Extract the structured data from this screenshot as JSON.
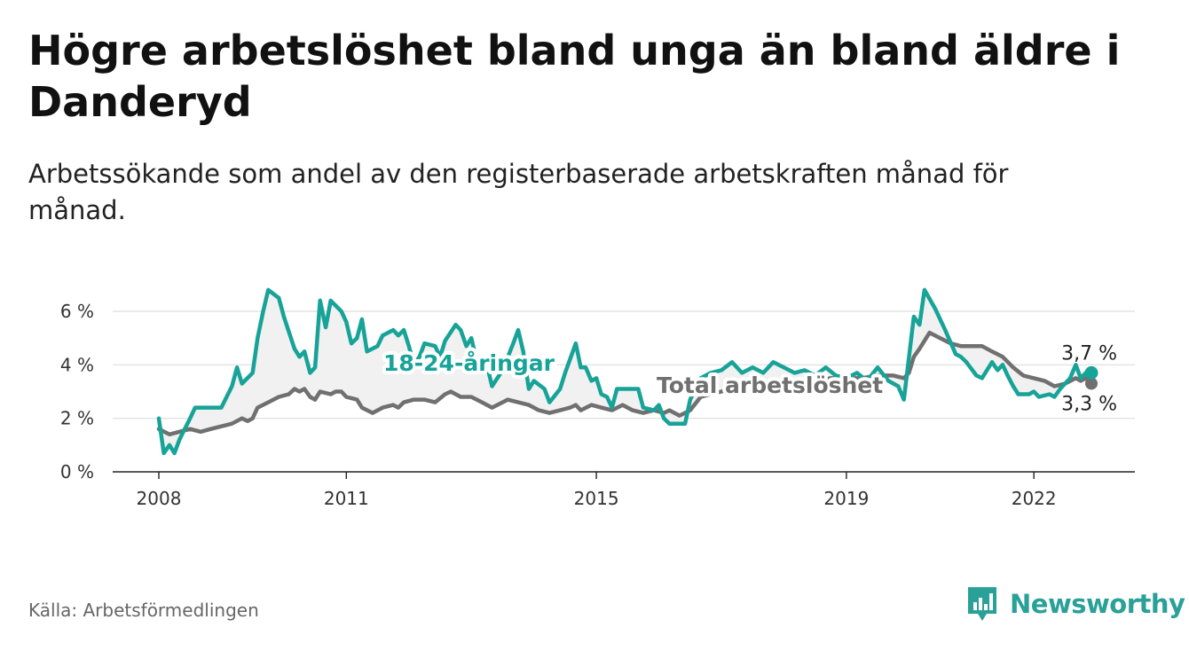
{
  "header": {
    "title": "Högre arbetslöshet bland unga än bland äldre i Danderyd",
    "subtitle": "Arbetssökande som andel av den registerbaserade arbetskraften månad för månad."
  },
  "footer": {
    "source": "Källa: Arbetsförmedlingen",
    "brand": "Newsworthy"
  },
  "colors": {
    "youth": "#17a398",
    "total": "#707070",
    "grid": "#dddddd",
    "band": "#f1f1f1"
  },
  "chart_data": {
    "type": "line",
    "xlabel": "",
    "ylabel": "",
    "x_range": [
      2008.0,
      2022.92
    ],
    "ylim": [
      0,
      6
    ],
    "y_ticks": [
      {
        "value": 0,
        "label": "0 %"
      },
      {
        "value": 2,
        "label": "2 %"
      },
      {
        "value": 4,
        "label": "4 %"
      },
      {
        "value": 6,
        "label": "6 %"
      }
    ],
    "x_ticks": [
      {
        "value": 2008,
        "label": "2008"
      },
      {
        "value": 2011,
        "label": "2011"
      },
      {
        "value": 2015,
        "label": "2015"
      },
      {
        "value": 2019,
        "label": "2019"
      },
      {
        "value": 2022,
        "label": "2022"
      }
    ],
    "series": [
      {
        "name": "18-24-åringar",
        "label": "18-24-åringar",
        "end_label": "3,7 %",
        "color": "#17a398",
        "points": [
          [
            2008.0,
            2.0
          ],
          [
            2008.08,
            0.7
          ],
          [
            2008.17,
            1.0
          ],
          [
            2008.25,
            0.7
          ],
          [
            2008.33,
            1.2
          ],
          [
            2008.5,
            2.0
          ],
          [
            2008.58,
            2.4
          ],
          [
            2008.75,
            2.4
          ],
          [
            2008.92,
            2.4
          ],
          [
            2009.0,
            2.4
          ],
          [
            2009.17,
            3.2
          ],
          [
            2009.25,
            3.9
          ],
          [
            2009.33,
            3.3
          ],
          [
            2009.5,
            3.7
          ],
          [
            2009.58,
            5.0
          ],
          [
            2009.67,
            6.0
          ],
          [
            2009.75,
            6.8
          ],
          [
            2009.92,
            6.5
          ],
          [
            2010.0,
            5.8
          ],
          [
            2010.17,
            4.6
          ],
          [
            2010.25,
            4.3
          ],
          [
            2010.33,
            4.5
          ],
          [
            2010.42,
            3.7
          ],
          [
            2010.5,
            3.9
          ],
          [
            2010.58,
            6.4
          ],
          [
            2010.67,
            5.4
          ],
          [
            2010.75,
            6.4
          ],
          [
            2010.92,
            6.0
          ],
          [
            2011.0,
            5.6
          ],
          [
            2011.08,
            4.8
          ],
          [
            2011.17,
            5.0
          ],
          [
            2011.25,
            5.7
          ],
          [
            2011.33,
            4.5
          ],
          [
            2011.5,
            4.7
          ],
          [
            2011.58,
            5.1
          ],
          [
            2011.75,
            5.3
          ],
          [
            2011.83,
            5.1
          ],
          [
            2011.92,
            5.3
          ],
          [
            2012.0,
            4.7
          ],
          [
            2012.08,
            4.0
          ],
          [
            2012.17,
            4.3
          ],
          [
            2012.25,
            4.8
          ],
          [
            2012.42,
            4.7
          ],
          [
            2012.5,
            4.3
          ],
          [
            2012.58,
            4.9
          ],
          [
            2012.75,
            5.5
          ],
          [
            2012.83,
            5.3
          ],
          [
            2012.92,
            4.7
          ],
          [
            2013.0,
            5.0
          ],
          [
            2013.08,
            4.2
          ],
          [
            2013.25,
            4.0
          ],
          [
            2013.33,
            3.2
          ],
          [
            2013.5,
            3.8
          ],
          [
            2013.67,
            4.8
          ],
          [
            2013.75,
            5.3
          ],
          [
            2013.83,
            4.5
          ],
          [
            2013.92,
            3.1
          ],
          [
            2014.0,
            3.4
          ],
          [
            2014.17,
            3.1
          ],
          [
            2014.25,
            2.6
          ],
          [
            2014.42,
            3.1
          ],
          [
            2014.5,
            3.7
          ],
          [
            2014.67,
            4.8
          ],
          [
            2014.75,
            3.9
          ],
          [
            2014.83,
            3.9
          ],
          [
            2014.92,
            3.4
          ],
          [
            2015.0,
            3.5
          ],
          [
            2015.08,
            2.9
          ],
          [
            2015.17,
            2.8
          ],
          [
            2015.25,
            2.4
          ],
          [
            2015.33,
            3.1
          ],
          [
            2015.5,
            3.1
          ],
          [
            2015.67,
            3.1
          ],
          [
            2015.75,
            2.4
          ],
          [
            2015.92,
            2.3
          ],
          [
            2016.0,
            2.5
          ],
          [
            2016.08,
            2.0
          ],
          [
            2016.17,
            1.8
          ],
          [
            2016.33,
            1.8
          ],
          [
            2016.42,
            1.8
          ],
          [
            2016.5,
            2.7
          ],
          [
            2016.67,
            3.5
          ],
          [
            2016.83,
            3.7
          ],
          [
            2017.0,
            3.8
          ],
          [
            2017.17,
            4.1
          ],
          [
            2017.33,
            3.7
          ],
          [
            2017.5,
            3.9
          ],
          [
            2017.67,
            3.7
          ],
          [
            2017.83,
            4.1
          ],
          [
            2018.0,
            3.9
          ],
          [
            2018.17,
            3.7
          ],
          [
            2018.33,
            3.8
          ],
          [
            2018.5,
            3.6
          ],
          [
            2018.67,
            3.9
          ],
          [
            2018.83,
            3.6
          ],
          [
            2019.0,
            3.5
          ],
          [
            2019.17,
            3.7
          ],
          [
            2019.33,
            3.4
          ],
          [
            2019.5,
            3.9
          ],
          [
            2019.67,
            3.4
          ],
          [
            2019.83,
            3.2
          ],
          [
            2019.92,
            2.7
          ],
          [
            2020.08,
            5.8
          ],
          [
            2020.17,
            5.5
          ],
          [
            2020.25,
            6.8
          ],
          [
            2020.42,
            6.1
          ],
          [
            2020.58,
            5.3
          ],
          [
            2020.75,
            4.4
          ],
          [
            2020.83,
            4.3
          ],
          [
            2020.92,
            4.1
          ],
          [
            2021.08,
            3.6
          ],
          [
            2021.17,
            3.5
          ],
          [
            2021.33,
            4.1
          ],
          [
            2021.42,
            3.8
          ],
          [
            2021.5,
            4.0
          ],
          [
            2021.58,
            3.6
          ],
          [
            2021.67,
            3.2
          ],
          [
            2021.75,
            2.9
          ],
          [
            2021.92,
            2.9
          ],
          [
            2022.0,
            3.0
          ],
          [
            2022.08,
            2.8
          ],
          [
            2022.25,
            2.9
          ],
          [
            2022.33,
            2.8
          ],
          [
            2022.42,
            3.1
          ],
          [
            2022.58,
            3.5
          ],
          [
            2022.67,
            4.0
          ],
          [
            2022.75,
            3.5
          ],
          [
            2022.83,
            3.7
          ],
          [
            2022.92,
            3.7
          ]
        ]
      },
      {
        "name": "Total arbetslöshet",
        "label": "Total arbetslöshet",
        "end_label": "3,3 %",
        "color": "#707070",
        "points": [
          [
            2008.0,
            1.6
          ],
          [
            2008.17,
            1.4
          ],
          [
            2008.33,
            1.5
          ],
          [
            2008.5,
            1.6
          ],
          [
            2008.67,
            1.5
          ],
          [
            2008.83,
            1.6
          ],
          [
            2009.0,
            1.7
          ],
          [
            2009.17,
            1.8
          ],
          [
            2009.33,
            2.0
          ],
          [
            2009.42,
            1.9
          ],
          [
            2009.5,
            2.0
          ],
          [
            2009.58,
            2.4
          ],
          [
            2009.75,
            2.6
          ],
          [
            2009.92,
            2.8
          ],
          [
            2010.08,
            2.9
          ],
          [
            2010.17,
            3.1
          ],
          [
            2010.25,
            3.0
          ],
          [
            2010.33,
            3.1
          ],
          [
            2010.42,
            2.8
          ],
          [
            2010.5,
            2.7
          ],
          [
            2010.58,
            3.0
          ],
          [
            2010.75,
            2.9
          ],
          [
            2010.83,
            3.0
          ],
          [
            2010.92,
            3.0
          ],
          [
            2011.0,
            2.8
          ],
          [
            2011.17,
            2.7
          ],
          [
            2011.25,
            2.4
          ],
          [
            2011.42,
            2.2
          ],
          [
            2011.58,
            2.4
          ],
          [
            2011.75,
            2.5
          ],
          [
            2011.83,
            2.4
          ],
          [
            2011.92,
            2.6
          ],
          [
            2012.08,
            2.7
          ],
          [
            2012.25,
            2.7
          ],
          [
            2012.42,
            2.6
          ],
          [
            2012.58,
            2.9
          ],
          [
            2012.67,
            3.0
          ],
          [
            2012.83,
            2.8
          ],
          [
            2013.0,
            2.8
          ],
          [
            2013.17,
            2.6
          ],
          [
            2013.33,
            2.4
          ],
          [
            2013.5,
            2.6
          ],
          [
            2013.58,
            2.7
          ],
          [
            2013.75,
            2.6
          ],
          [
            2013.92,
            2.5
          ],
          [
            2014.08,
            2.3
          ],
          [
            2014.25,
            2.2
          ],
          [
            2014.42,
            2.3
          ],
          [
            2014.58,
            2.4
          ],
          [
            2014.67,
            2.5
          ],
          [
            2014.75,
            2.3
          ],
          [
            2014.92,
            2.5
          ],
          [
            2015.08,
            2.4
          ],
          [
            2015.25,
            2.3
          ],
          [
            2015.42,
            2.5
          ],
          [
            2015.58,
            2.3
          ],
          [
            2015.75,
            2.2
          ],
          [
            2015.92,
            2.3
          ],
          [
            2016.08,
            2.2
          ],
          [
            2016.17,
            2.3
          ],
          [
            2016.33,
            2.1
          ],
          [
            2016.5,
            2.3
          ],
          [
            2016.67,
            2.8
          ],
          [
            2016.83,
            2.9
          ],
          [
            2017.0,
            3.0
          ],
          [
            2017.25,
            3.2
          ],
          [
            2017.5,
            3.3
          ],
          [
            2017.75,
            3.3
          ],
          [
            2018.0,
            3.4
          ],
          [
            2018.25,
            3.4
          ],
          [
            2018.5,
            3.4
          ],
          [
            2018.75,
            3.5
          ],
          [
            2019.0,
            3.5
          ],
          [
            2019.25,
            3.5
          ],
          [
            2019.5,
            3.6
          ],
          [
            2019.75,
            3.6
          ],
          [
            2019.92,
            3.5
          ],
          [
            2020.0,
            3.7
          ],
          [
            2020.08,
            4.3
          ],
          [
            2020.17,
            4.6
          ],
          [
            2020.33,
            5.2
          ],
          [
            2020.5,
            5.0
          ],
          [
            2020.67,
            4.8
          ],
          [
            2020.83,
            4.7
          ],
          [
            2021.0,
            4.7
          ],
          [
            2021.17,
            4.7
          ],
          [
            2021.33,
            4.5
          ],
          [
            2021.5,
            4.3
          ],
          [
            2021.67,
            3.9
          ],
          [
            2021.83,
            3.6
          ],
          [
            2022.0,
            3.5
          ],
          [
            2022.17,
            3.4
          ],
          [
            2022.33,
            3.2
          ],
          [
            2022.5,
            3.3
          ],
          [
            2022.67,
            3.5
          ],
          [
            2022.75,
            3.4
          ],
          [
            2022.83,
            3.5
          ],
          [
            2022.92,
            3.3
          ]
        ]
      }
    ]
  }
}
